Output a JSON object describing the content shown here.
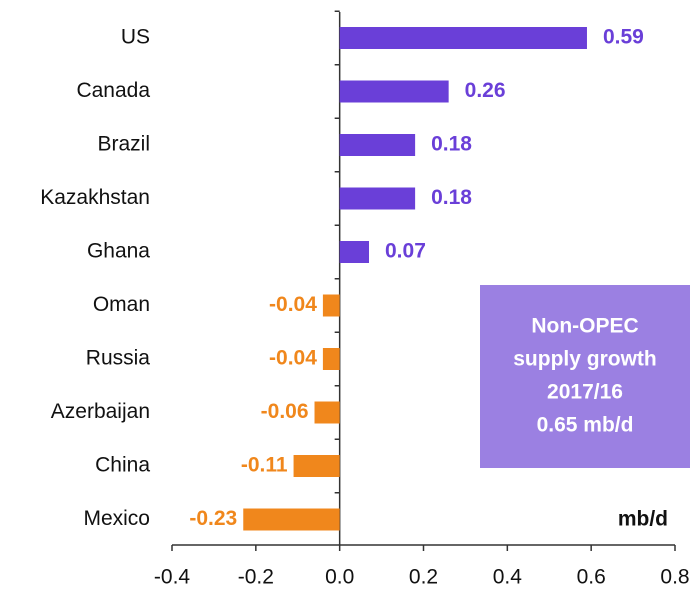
{
  "chart_data": {
    "type": "bar",
    "orientation": "horizontal",
    "categories": [
      "US",
      "Canada",
      "Brazil",
      "Kazakhstan",
      "Ghana",
      "Oman",
      "Russia",
      "Azerbaijan",
      "China",
      "Mexico"
    ],
    "values": [
      0.59,
      0.26,
      0.18,
      0.18,
      0.07,
      -0.04,
      -0.04,
      -0.06,
      -0.11,
      -0.23
    ],
    "color_positive": "#6a3fd8",
    "color_negative": "#f0871c",
    "xlim": [
      -0.4,
      0.8
    ],
    "xticks": [
      -0.4,
      -0.2,
      {
        "value": 0,
        "label": "0.0"
      },
      0.2,
      0.4,
      0.6,
      0.8
    ],
    "x_label": "mb/d",
    "annotation": [
      "Non-OPEC",
      "supply growth",
      "2017/16",
      "0.65 mb/d"
    ],
    "annotation_color": "#9b80e2"
  }
}
